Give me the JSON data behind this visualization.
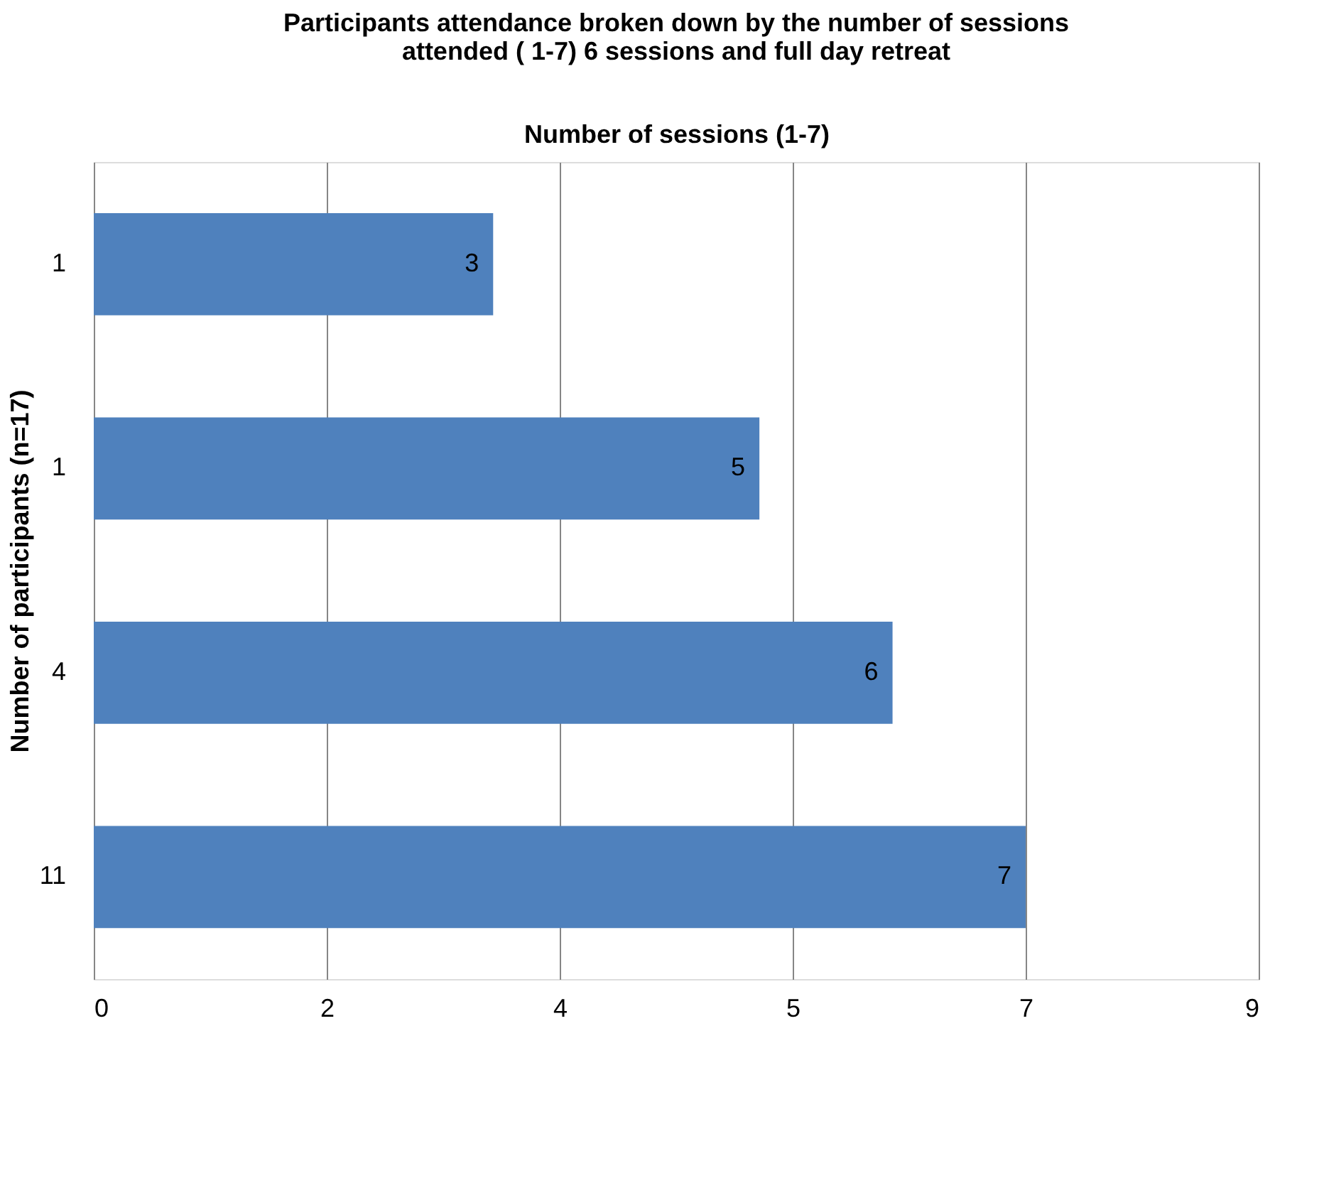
{
  "chart_data": {
    "type": "bar",
    "orientation": "horizontal",
    "title": "Participants attendance broken down by the number of sessions attended ( 1-7) 6 sessions and  full day retreat",
    "xlabel": "Number of sessions (1-7)",
    "ylabel": "Number of participants (n=17)",
    "categories": [
      "1",
      "1",
      "4",
      "11"
    ],
    "values": [
      3,
      5,
      6,
      7
    ],
    "color": "#4f81bd",
    "xlim": [
      0,
      8.75
    ],
    "xticks": [
      0,
      {
        "value": 1.75,
        "label": "2"
      },
      {
        "value": 3.5,
        "label": "4"
      },
      {
        "value": 5.25,
        "label": "5"
      },
      7,
      {
        "value": 8.75,
        "label": "9"
      }
    ],
    "grid": "x",
    "data_labels": true
  }
}
